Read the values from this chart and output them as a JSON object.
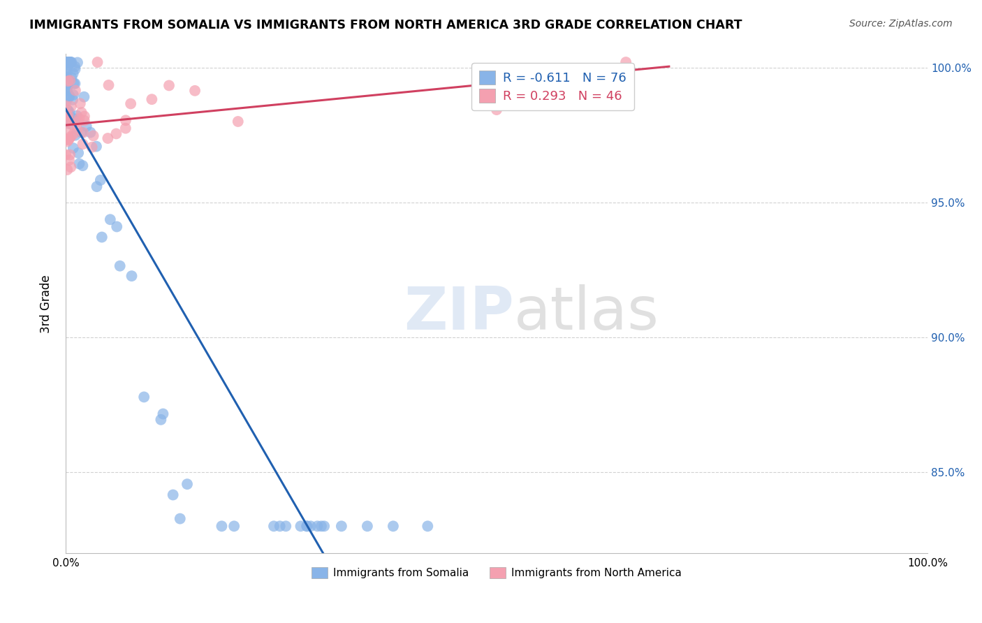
{
  "title": "IMMIGRANTS FROM SOMALIA VS IMMIGRANTS FROM NORTH AMERICA 3RD GRADE CORRELATION CHART",
  "source": "Source: ZipAtlas.com",
  "ylabel": "3rd Grade",
  "legend_label1": "Immigrants from Somalia",
  "legend_label2": "Immigrants from North America",
  "R1": -0.611,
  "N1": 76,
  "R2": 0.293,
  "N2": 46,
  "color_somalia": "#89b4e8",
  "color_north_america": "#f4a0b0",
  "color_line_somalia": "#2060b0",
  "color_line_north_america": "#d04060",
  "background_color": "#ffffff",
  "grid_color": "#cccccc",
  "watermark_zip": "ZIP",
  "watermark_atlas": "atlas",
  "yticks_right": [
    0.85,
    0.9,
    0.95,
    1.0
  ],
  "ytick_right_labels": [
    "85.0%",
    "90.0%",
    "95.0%",
    "100.0%"
  ]
}
